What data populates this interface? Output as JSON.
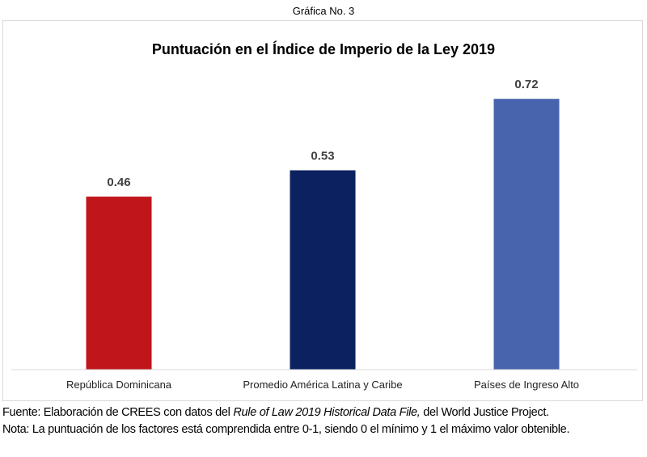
{
  "caption": "Gráfica No. 3",
  "chart_data": {
    "type": "bar",
    "title": "Puntuación en el Índice de Imperio de la Ley 2019",
    "categories": [
      "República Dominicana",
      "Promedio América Latina y Caribe",
      "Países de Ingreso Alto"
    ],
    "values": [
      0.46,
      0.53,
      0.72
    ],
    "value_labels": [
      "0.46",
      "0.53",
      "0.72"
    ],
    "colors": [
      "#c0151a",
      "#0b2160",
      "#4864ad"
    ],
    "ylim": [
      0,
      1
    ],
    "grid": false,
    "legend": "none",
    "xlabel": "",
    "ylabel": ""
  },
  "footer": {
    "source_prefix": "Fuente: Elaboración de CREES con datos del ",
    "source_italic": "Rule of Law 2019 Historical Data File,",
    "source_suffix": " del World Justice Project.",
    "note": "Nota: La puntuación de los factores está comprendida entre 0-1, siendo 0 el mínimo y 1 el máximo valor obtenible."
  }
}
